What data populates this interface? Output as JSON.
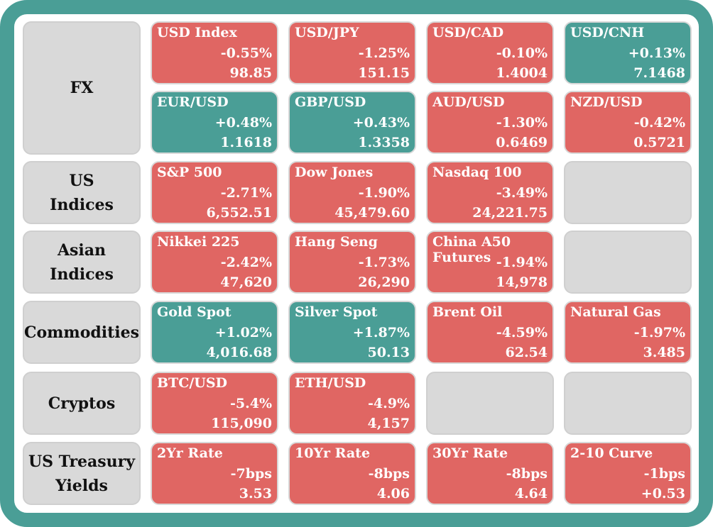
{
  "colors": {
    "frame": "#4a9e96",
    "up": "#4a9e96",
    "down": "#e06663",
    "empty": "#d9d9d9"
  },
  "rows": [
    {
      "label": "FX",
      "tiles": [
        {
          "name": "USD Index",
          "change": "-0.55%",
          "value": "98.85",
          "dir": "down"
        },
        {
          "name": "USD/JPY",
          "change": "-1.25%",
          "value": "151.15",
          "dir": "down"
        },
        {
          "name": "USD/CAD",
          "change": "-0.10%",
          "value": "1.4004",
          "dir": "down"
        },
        {
          "name": "USD/CNH",
          "change": "+0.13%",
          "value": "7.1468",
          "dir": "up"
        },
        {
          "name": "EUR/USD",
          "change": "+0.48%",
          "value": "1.1618",
          "dir": "up"
        },
        {
          "name": "GBP/USD",
          "change": "+0.43%",
          "value": "1.3358",
          "dir": "up"
        },
        {
          "name": "AUD/USD",
          "change": "-1.30%",
          "value": "0.6469",
          "dir": "down"
        },
        {
          "name": "NZD/USD",
          "change": "-0.42%",
          "value": "0.5721",
          "dir": "down"
        }
      ]
    },
    {
      "label": "US\nIndices",
      "tiles": [
        {
          "name": "S&P 500",
          "change": "-2.71%",
          "value": "6,552.51",
          "dir": "down"
        },
        {
          "name": "Dow Jones",
          "change": "-1.90%",
          "value": "45,479.60",
          "dir": "down"
        },
        {
          "name": "Nasdaq 100",
          "change": "-3.49%",
          "value": "24,221.75",
          "dir": "down"
        },
        null
      ]
    },
    {
      "label": "Asian\nIndices",
      "tiles": [
        {
          "name": "Nikkei 225",
          "change": "-2.42%",
          "value": "47,620",
          "dir": "down"
        },
        {
          "name": "Hang Seng",
          "change": "-1.73%",
          "value": "26,290",
          "dir": "down"
        },
        {
          "name": "China A50\nFutures",
          "change": "-1.94%",
          "value": "14,978",
          "dir": "down"
        },
        null
      ]
    },
    {
      "label": "Commodities",
      "tiles": [
        {
          "name": "Gold Spot",
          "change": "+1.02%",
          "value": "4,016.68",
          "dir": "up"
        },
        {
          "name": "Silver Spot",
          "change": "+1.87%",
          "value": "50.13",
          "dir": "up"
        },
        {
          "name": "Brent Oil",
          "change": "-4.59%",
          "value": "62.54",
          "dir": "down"
        },
        {
          "name": "Natural Gas",
          "change": "-1.97%",
          "value": "3.485",
          "dir": "down"
        }
      ]
    },
    {
      "label": "Cryptos",
      "tiles": [
        {
          "name": "BTC/USD",
          "change": "-5.4%",
          "value": "115,090",
          "dir": "down"
        },
        {
          "name": "ETH/USD",
          "change": "-4.9%",
          "value": "4,157",
          "dir": "down"
        },
        null,
        null
      ]
    },
    {
      "label": "US Treasury\nYields",
      "tiles": [
        {
          "name": "2Yr Rate",
          "change": "-7bps",
          "value": "3.53",
          "dir": "down"
        },
        {
          "name": "10Yr Rate",
          "change": "-8bps",
          "value": "4.06",
          "dir": "down"
        },
        {
          "name": "30Yr Rate",
          "change": "-8bps",
          "value": "4.64",
          "dir": "down"
        },
        {
          "name": "2-10 Curve",
          "change": "-1bps",
          "value": "+0.53",
          "dir": "down"
        }
      ]
    }
  ]
}
